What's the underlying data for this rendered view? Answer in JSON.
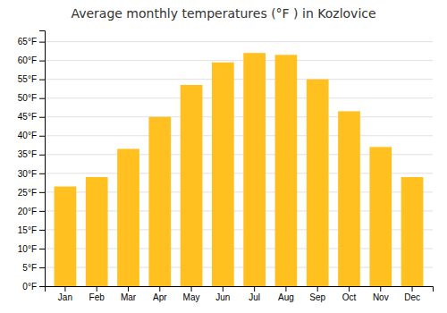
{
  "chart_data": {
    "type": "bar",
    "title": "Average monthly temperatures (°F ) in Kozlovice",
    "categories": [
      "Jan",
      "Feb",
      "Mar",
      "Apr",
      "May",
      "Jun",
      "Jul",
      "Aug",
      "Sep",
      "Oct",
      "Nov",
      "Dec"
    ],
    "values": [
      26.5,
      29.0,
      36.5,
      45.0,
      53.5,
      59.5,
      62.0,
      61.5,
      55.0,
      46.5,
      37.0,
      29.0
    ],
    "color": "#FFC020",
    "ylim": [
      0,
      68
    ],
    "yticks": [
      {
        "value": 0,
        "label": "0°F"
      },
      {
        "value": 5,
        "label": "5°F"
      },
      {
        "value": 10,
        "label": "10°F"
      },
      {
        "value": 15,
        "label": "15°F"
      },
      {
        "value": 20,
        "label": "20°F"
      },
      {
        "value": 25,
        "label": "25°F"
      },
      {
        "value": 30,
        "label": "30°F"
      },
      {
        "value": 35,
        "label": "35°F"
      },
      {
        "value": 40,
        "label": "40°F"
      },
      {
        "value": 45,
        "label": "45°F"
      },
      {
        "value": 50,
        "label": "50°F"
      },
      {
        "value": 55,
        "label": "55°F"
      },
      {
        "value": 60,
        "label": "60°F"
      },
      {
        "value": 65,
        "label": "65°F"
      }
    ],
    "grid": true
  }
}
